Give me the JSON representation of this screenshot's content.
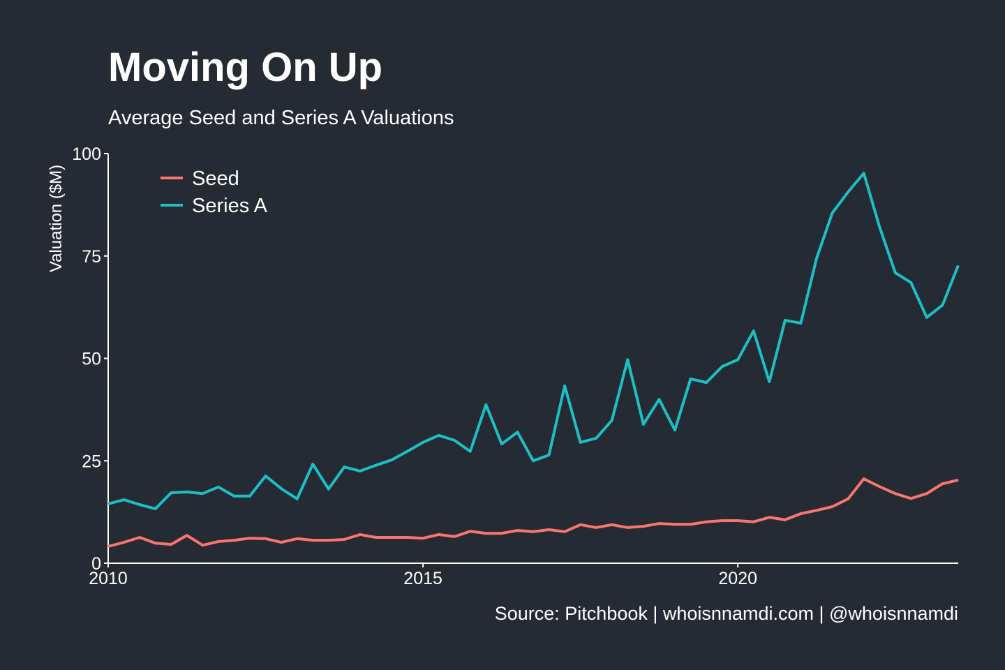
{
  "chart_data": {
    "type": "line",
    "title": "Moving On Up",
    "subtitle": "Average Seed and Series A Valuations",
    "y_label": "Valuation ($M)",
    "source": "Source: Pitchbook | whoisnnamdi.com | @whoisnnamdi",
    "x": [
      2010,
      2010.25,
      2010.5,
      2010.75,
      2011,
      2011.25,
      2011.5,
      2011.75,
      2012,
      2012.25,
      2012.5,
      2012.75,
      2013,
      2013.25,
      2013.5,
      2013.75,
      2014,
      2014.25,
      2014.5,
      2014.75,
      2015,
      2015.25,
      2015.5,
      2015.75,
      2016,
      2016.25,
      2016.5,
      2016.75,
      2017,
      2017.25,
      2017.5,
      2017.75,
      2018,
      2018.25,
      2018.5,
      2018.75,
      2019,
      2019.25,
      2019.5,
      2019.75,
      2020,
      2020.25,
      2020.5,
      2020.75,
      2021,
      2021.25,
      2021.5,
      2021.75,
      2022,
      2022.25,
      2022.5,
      2022.75,
      2023,
      2023.25,
      2023.5
    ],
    "series": [
      {
        "name": "Seed",
        "color": "#f8766d",
        "values": [
          4.1,
          5.1,
          6.3,
          4.9,
          4.6,
          6.8,
          4.4,
          5.3,
          5.6,
          6.1,
          6.0,
          5.1,
          6.0,
          5.6,
          5.6,
          5.8,
          7.0,
          6.3,
          6.3,
          6.3,
          6.1,
          7.0,
          6.5,
          7.8,
          7.3,
          7.3,
          8.0,
          7.7,
          8.2,
          7.7,
          9.4,
          8.7,
          9.4,
          8.7,
          9.0,
          9.7,
          9.5,
          9.5,
          10.1,
          10.4,
          10.4,
          10.1,
          11.2,
          10.6,
          12.1,
          12.9,
          13.8,
          15.7,
          20.6,
          18.7,
          17.0,
          15.8,
          17.0,
          19.4,
          20.3
        ]
      },
      {
        "name": "Series A",
        "color": "#1ebfc4",
        "values": [
          14.5,
          15.5,
          14.3,
          13.3,
          17.2,
          17.4,
          17.0,
          18.6,
          16.4,
          16.4,
          21.3,
          18.2,
          15.7,
          24.2,
          18.1,
          23.5,
          22.5,
          23.9,
          25.2,
          27.3,
          29.5,
          31.2,
          30.0,
          27.3,
          38.7,
          29.1,
          32.0,
          25.0,
          26.4,
          43.3,
          29.5,
          30.5,
          34.9,
          49.7,
          33.9,
          40.0,
          32.5,
          45.0,
          44.1,
          48.0,
          49.7,
          56.7,
          44.3,
          59.3,
          58.6,
          74.4,
          85.5,
          90.6,
          95.2,
          82.1,
          70.9,
          68.5,
          60.0,
          63.0,
          72.7
        ]
      }
    ],
    "xlim": [
      2010,
      2023.5
    ],
    "xticks": [
      2010,
      2015,
      2020
    ],
    "ylim": [
      0,
      100
    ],
    "yticks": [
      0,
      25,
      50,
      75,
      100
    ],
    "legend": "top-left",
    "grid": false
  }
}
